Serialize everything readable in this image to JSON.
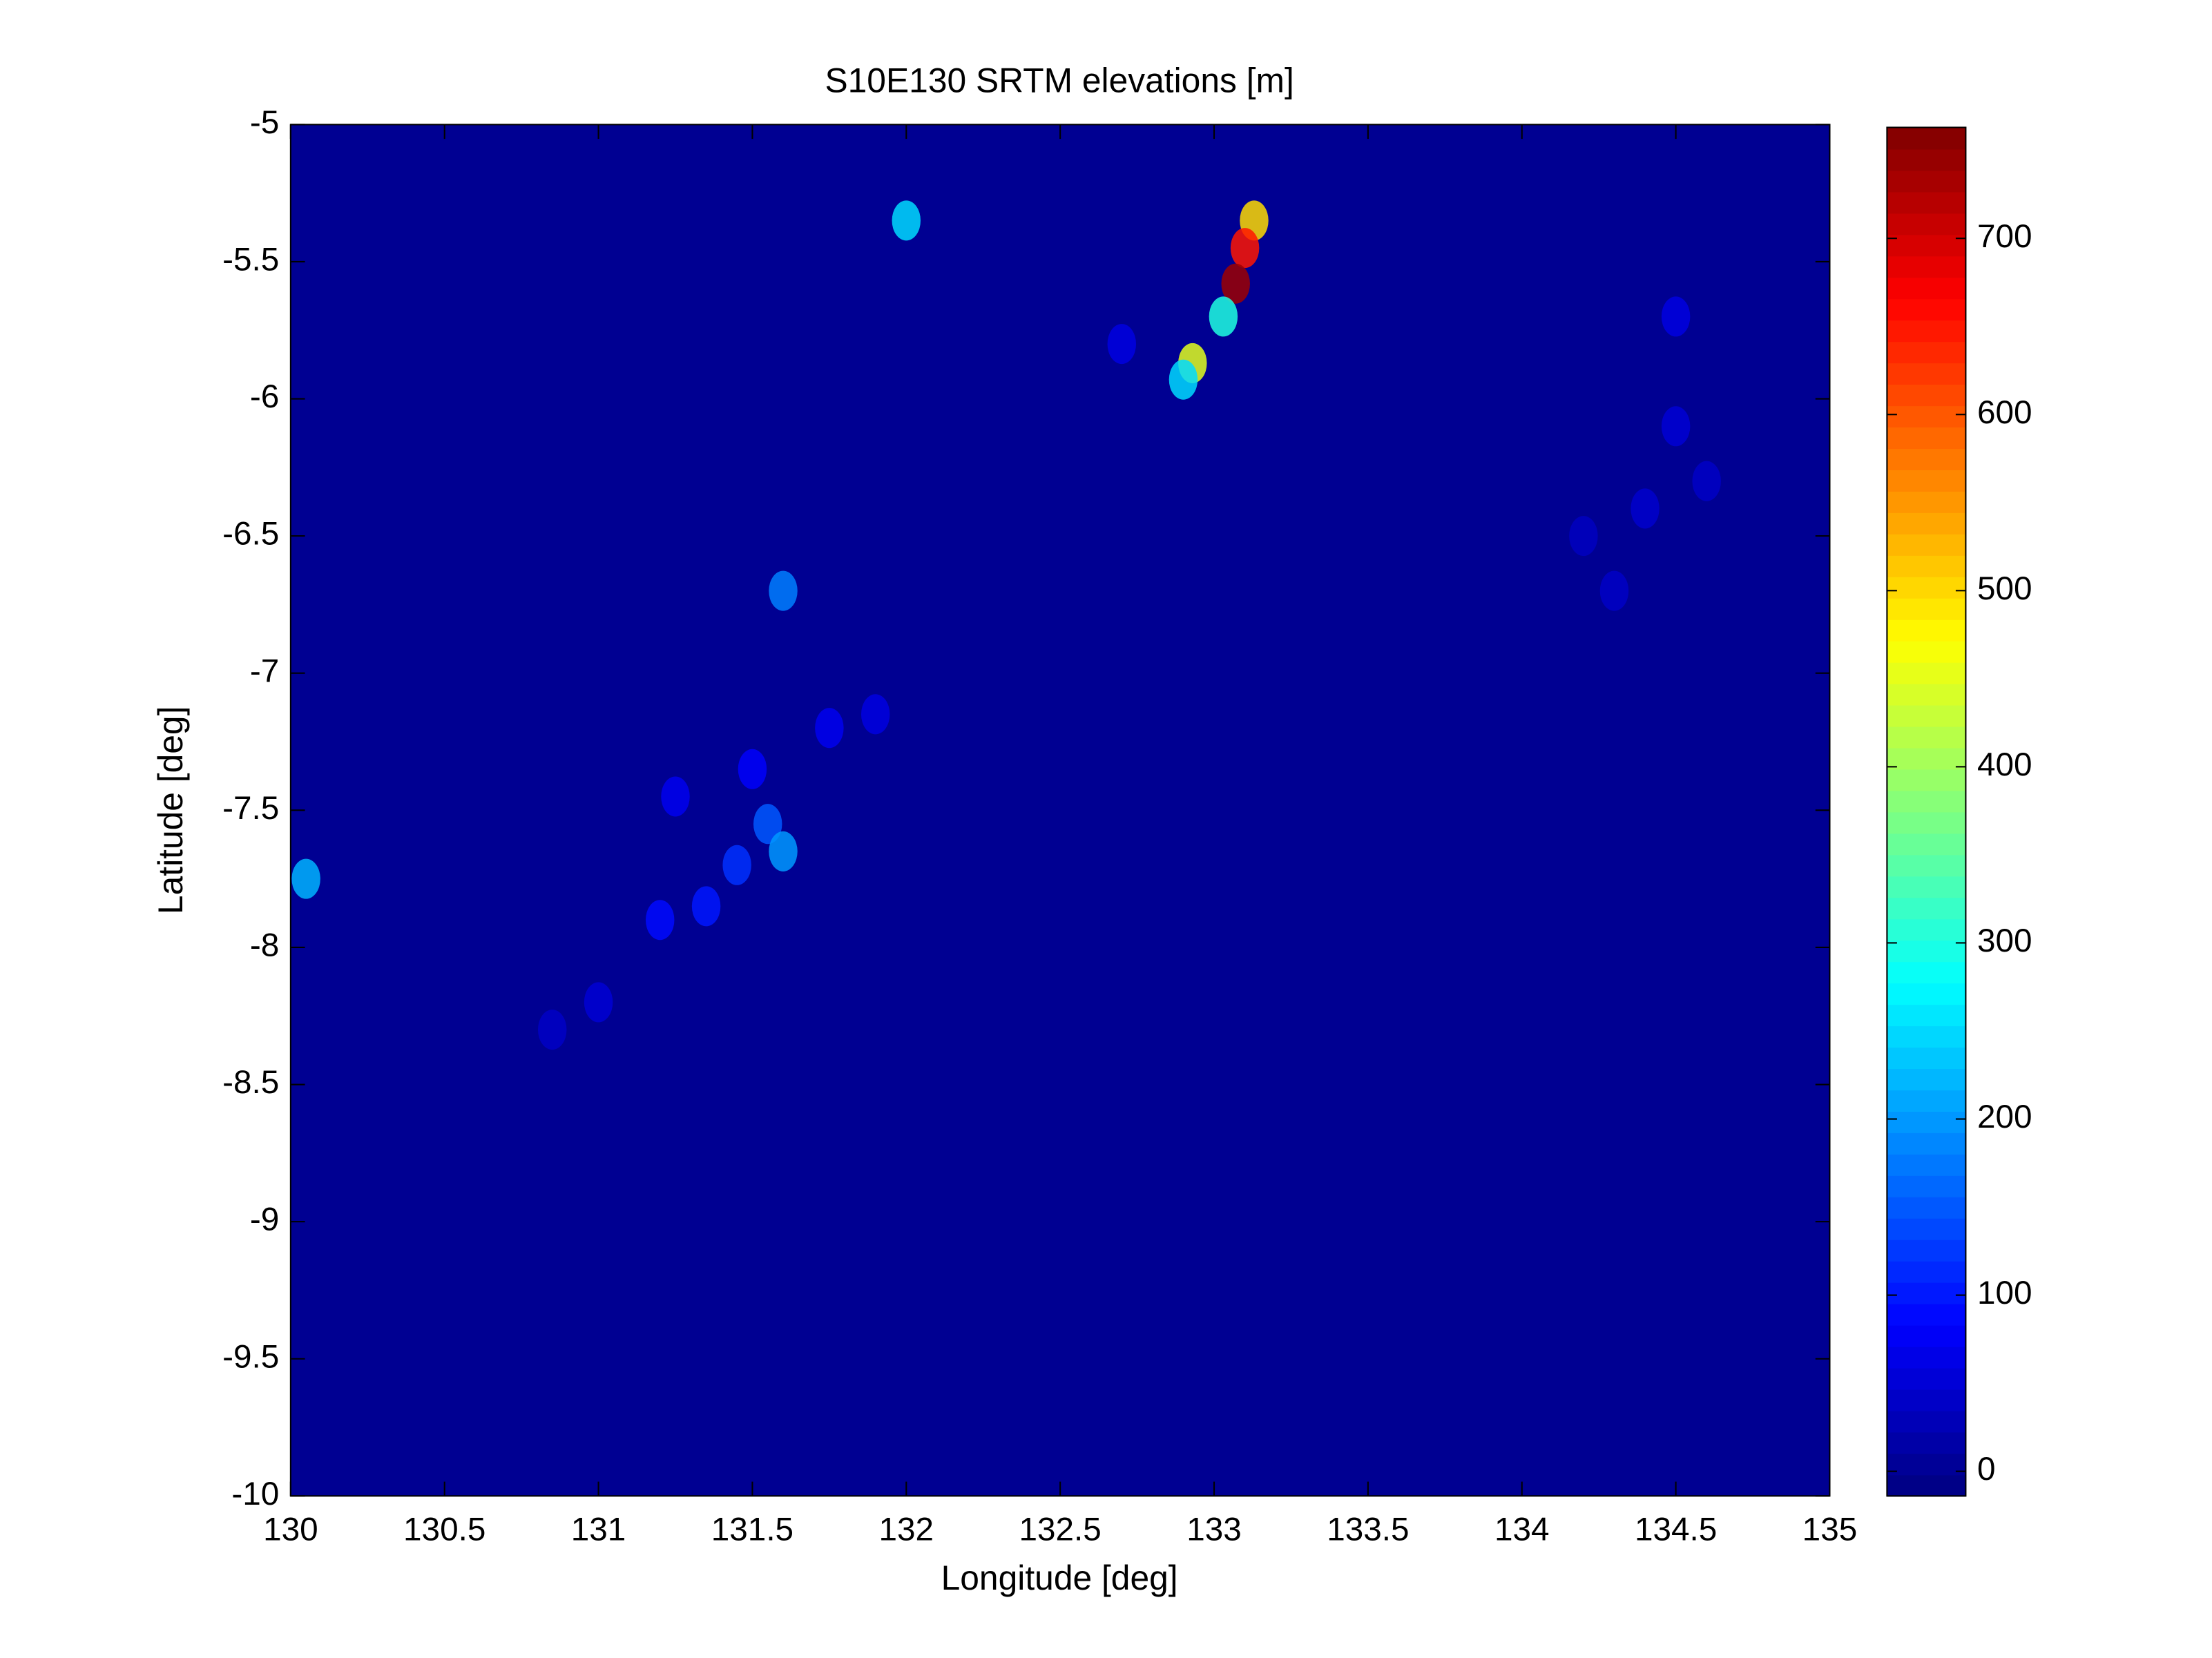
{
  "chart_data": {
    "type": "heatmap",
    "title": "S10E130 SRTM elevations [m]",
    "xlabel": "Longitude [deg]",
    "ylabel": "Latitude [deg]",
    "xlim": [
      130,
      135
    ],
    "xticks": [
      130,
      130.5,
      131,
      131.5,
      132,
      132.5,
      133,
      133.5,
      134,
      134.5,
      135
    ],
    "ylim": [
      -10,
      -5
    ],
    "yticks": [
      -10,
      -9.5,
      -9,
      -8.5,
      -8,
      -7.5,
      -7,
      -6.5,
      -6,
      -5.5,
      -5
    ],
    "clim": [
      -14,
      763
    ],
    "cticks": [
      0,
      100,
      200,
      300,
      400,
      500,
      600,
      700
    ],
    "colormap": "jet",
    "background_value": 0,
    "x": [
      133.13,
      133.1,
      133.07,
      133.03,
      132.93,
      132.9,
      134.5,
      134.5,
      134.4,
      134.3,
      134.6,
      134.2,
      131.55,
      131.6,
      131.45,
      131.35,
      131.2,
      131.5,
      131.75,
      131.9,
      131.25,
      131.0,
      130.85,
      132.0,
      130.05,
      131.6,
      132.7
    ],
    "y": [
      -5.35,
      -5.45,
      -5.58,
      -5.7,
      -5.87,
      -5.93,
      -5.7,
      -6.1,
      -6.4,
      -6.7,
      -6.3,
      -6.5,
      -7.55,
      -7.65,
      -7.7,
      -7.85,
      -7.9,
      -7.35,
      -7.2,
      -7.15,
      -7.45,
      -8.2,
      -8.3,
      -5.35,
      -7.75,
      -6.7,
      -5.8
    ],
    "values": [
      500,
      650,
      740,
      300,
      450,
      250,
      60,
      50,
      45,
      40,
      40,
      35,
      150,
      200,
      120,
      100,
      90,
      80,
      70,
      60,
      70,
      50,
      40,
      250,
      220,
      180,
      60
    ]
  }
}
